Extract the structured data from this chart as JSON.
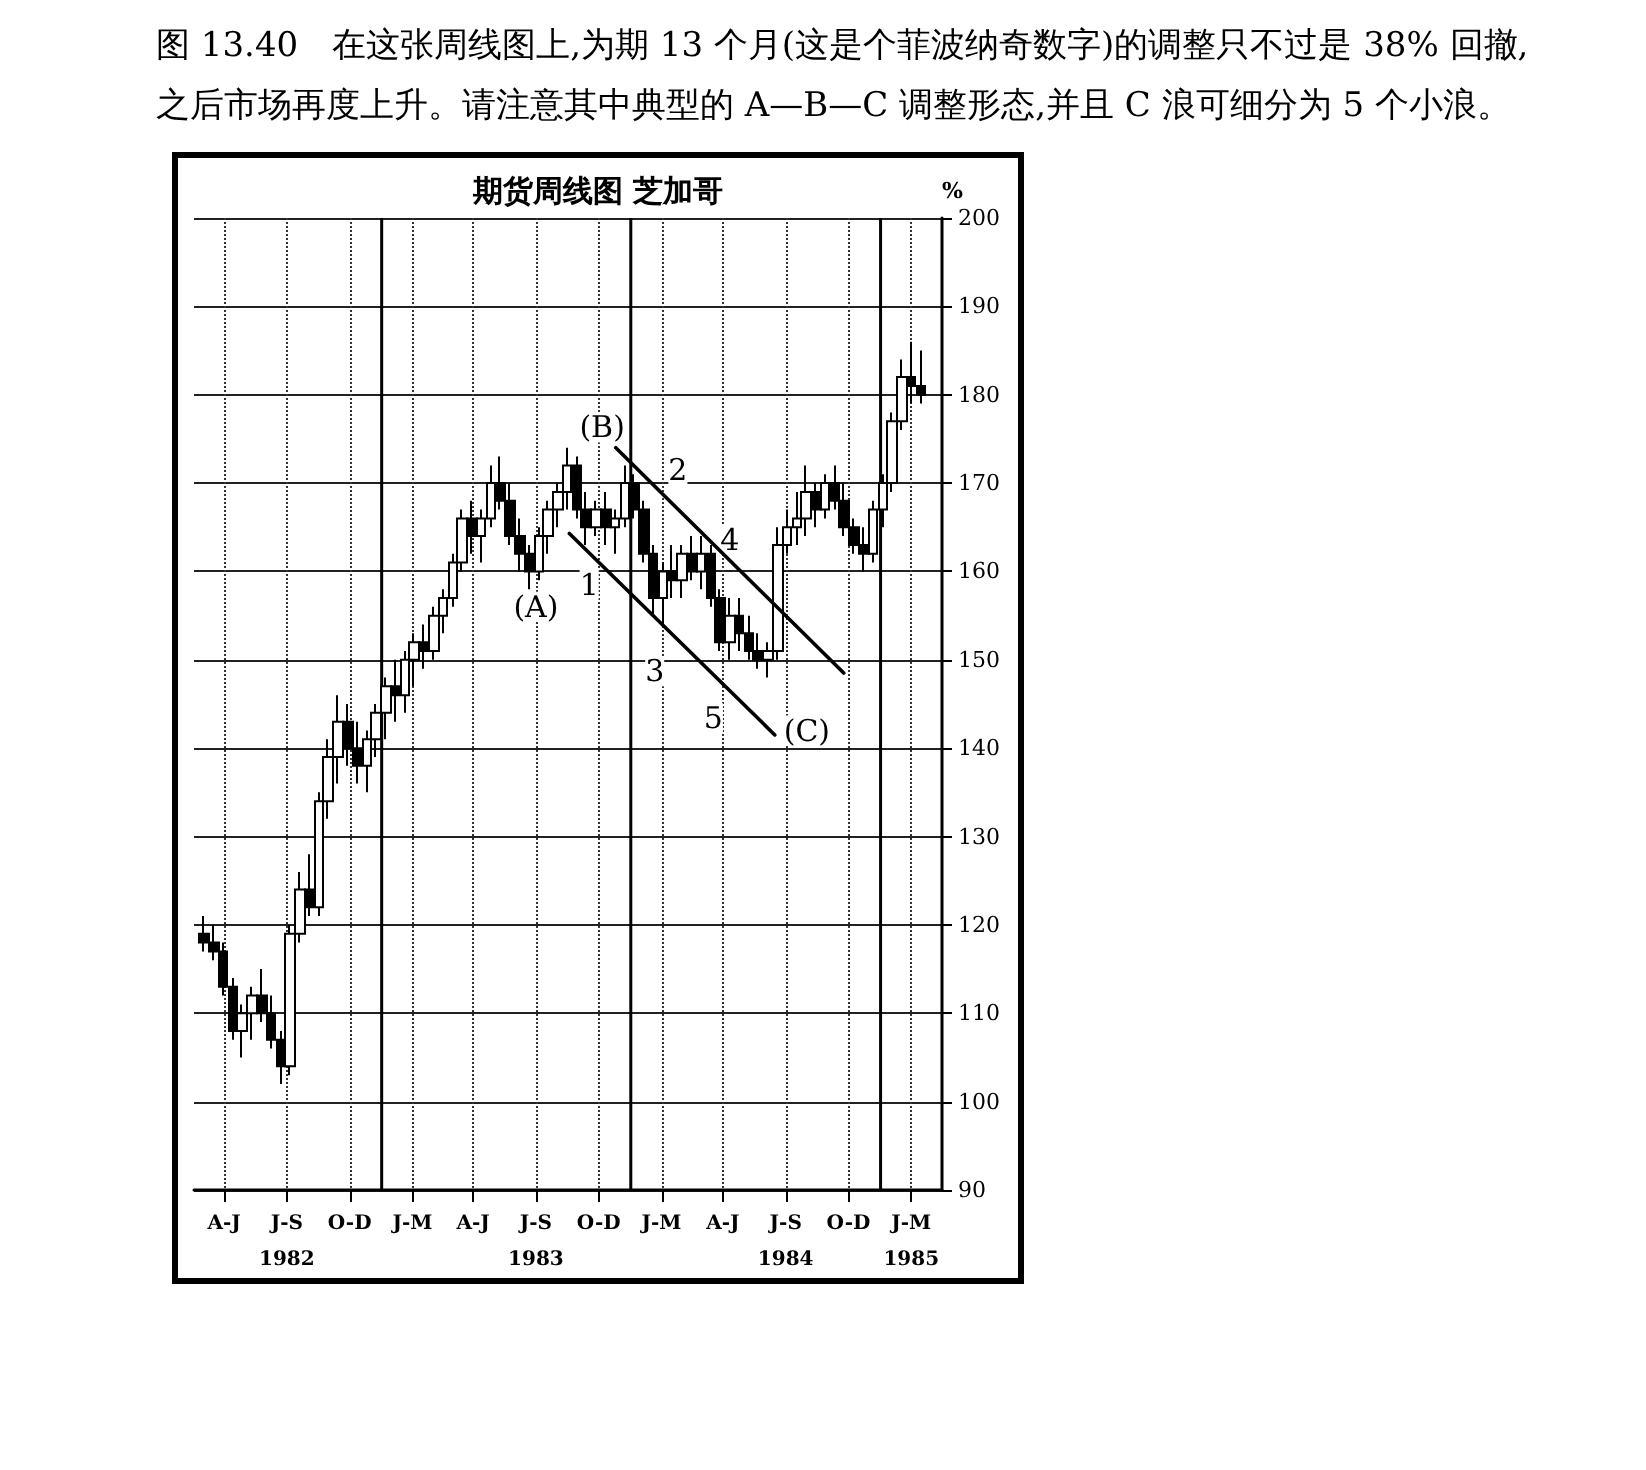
{
  "chart_data": {
    "type": "candlestick",
    "title": "期货周线图 芝加哥",
    "ylabel": "%",
    "x": [
      "1982-04-16",
      "1982-04-30",
      "1982-05-14",
      "1982-05-28",
      "1982-06-11",
      "1982-06-25",
      "1982-07-09",
      "1982-07-23",
      "1982-08-06",
      "1982-08-20",
      "1982-09-03",
      "1982-09-17",
      "1982-10-01",
      "1982-10-15",
      "1982-10-29",
      "1982-11-12",
      "1982-11-26",
      "1982-12-10",
      "1982-12-24",
      "1983-01-07",
      "1983-01-21",
      "1983-02-04",
      "1983-02-18",
      "1983-03-04",
      "1983-03-18",
      "1983-04-01",
      "1983-04-15",
      "1983-04-29",
      "1983-05-13",
      "1983-05-27",
      "1983-06-10",
      "1983-06-24",
      "1983-07-08",
      "1983-07-22",
      "1983-08-05",
      "1983-08-19",
      "1983-09-02",
      "1983-09-16",
      "1983-09-30",
      "1983-10-14",
      "1983-10-28",
      "1983-11-11",
      "1983-11-25",
      "1983-12-09",
      "1983-12-23",
      "1984-01-06",
      "1984-01-20",
      "1984-02-03",
      "1984-02-17",
      "1984-03-02",
      "1984-03-16",
      "1984-03-30",
      "1984-04-13",
      "1984-04-27",
      "1984-05-11",
      "1984-05-25",
      "1984-06-08",
      "1984-06-22",
      "1984-07-06",
      "1984-07-20",
      "1984-08-03",
      "1984-08-17",
      "1984-08-31",
      "1984-09-14",
      "1984-09-28",
      "1984-10-12",
      "1984-10-26",
      "1984-11-09",
      "1984-11-23",
      "1984-12-07",
      "1984-12-21",
      "1985-01-04",
      "1985-01-18",
      "1985-02-01",
      "1985-02-15",
      "1985-03-01"
    ],
    "ohlc": [
      [
        119,
        121,
        117,
        118
      ],
      [
        118,
        120,
        116,
        117
      ],
      [
        117,
        118,
        112,
        113
      ],
      [
        113,
        114,
        107,
        108
      ],
      [
        108,
        111,
        105,
        110
      ],
      [
        110,
        113,
        107,
        112
      ],
      [
        112,
        115,
        109,
        110
      ],
      [
        110,
        112,
        106,
        107
      ],
      [
        107,
        108,
        102,
        104
      ],
      [
        104,
        120,
        103,
        119
      ],
      [
        119,
        126,
        118,
        124
      ],
      [
        124,
        128,
        121,
        122
      ],
      [
        122,
        135,
        121,
        134
      ],
      [
        134,
        141,
        132,
        139
      ],
      [
        139,
        146,
        136,
        143
      ],
      [
        143,
        145,
        138,
        140
      ],
      [
        140,
        143,
        136,
        138
      ],
      [
        138,
        142,
        135,
        141
      ],
      [
        141,
        145,
        139,
        144
      ],
      [
        144,
        148,
        141,
        147
      ],
      [
        147,
        150,
        143,
        146
      ],
      [
        146,
        151,
        144,
        150
      ],
      [
        150,
        153,
        147,
        152
      ],
      [
        152,
        154,
        149,
        151
      ],
      [
        151,
        156,
        150,
        155
      ],
      [
        155,
        158,
        153,
        157
      ],
      [
        157,
        162,
        156,
        161
      ],
      [
        161,
        167,
        160,
        166
      ],
      [
        166,
        168,
        162,
        164
      ],
      [
        164,
        167,
        161,
        166
      ],
      [
        166,
        172,
        165,
        170
      ],
      [
        170,
        173,
        167,
        168
      ],
      [
        168,
        170,
        163,
        164
      ],
      [
        164,
        166,
        160,
        162
      ],
      [
        162,
        163,
        158,
        160
      ],
      [
        160,
        165,
        159,
        164
      ],
      [
        164,
        168,
        162,
        167
      ],
      [
        167,
        170,
        165,
        169
      ],
      [
        169,
        174,
        167,
        172
      ],
      [
        172,
        173,
        166,
        167
      ],
      [
        167,
        169,
        163,
        165
      ],
      [
        165,
        168,
        164,
        167
      ],
      [
        167,
        169,
        163,
        165
      ],
      [
        165,
        167,
        162,
        166
      ],
      [
        166,
        172,
        165,
        170
      ],
      [
        170,
        171,
        166,
        167
      ],
      [
        167,
        168,
        161,
        162
      ],
      [
        162,
        163,
        155,
        157
      ],
      [
        157,
        161,
        154,
        160
      ],
      [
        160,
        163,
        157,
        159
      ],
      [
        159,
        163,
        157,
        162
      ],
      [
        162,
        164,
        159,
        160
      ],
      [
        160,
        164,
        158,
        162
      ],
      [
        162,
        163,
        156,
        157
      ],
      [
        157,
        158,
        151,
        152
      ],
      [
        152,
        157,
        150,
        155
      ],
      [
        155,
        157,
        151,
        153
      ],
      [
        153,
        155,
        150,
        151
      ],
      [
        151,
        153,
        149,
        150
      ],
      [
        150,
        152,
        148,
        151
      ],
      [
        151,
        165,
        150,
        163
      ],
      [
        163,
        167,
        162,
        165
      ],
      [
        165,
        169,
        163,
        166
      ],
      [
        166,
        172,
        164,
        169
      ],
      [
        169,
        170,
        165,
        167
      ],
      [
        167,
        171,
        166,
        170
      ],
      [
        170,
        172,
        167,
        168
      ],
      [
        168,
        170,
        164,
        165
      ],
      [
        165,
        166,
        162,
        163
      ],
      [
        163,
        165,
        160,
        162
      ],
      [
        162,
        168,
        161,
        167
      ],
      [
        167,
        171,
        165,
        170
      ],
      [
        170,
        178,
        169,
        177
      ],
      [
        177,
        184,
        176,
        182
      ],
      [
        182,
        186,
        179,
        181
      ],
      [
        181,
        185,
        179,
        180
      ]
    ],
    "color": "#000000",
    "series": [
      {
        "type": "line",
        "color": "#000000",
        "x": [
          "1983-12-10",
          "1984-11-08"
        ],
        "values": [
          174,
          148.5
        ]
      },
      {
        "type": "line",
        "color": "#000000",
        "x": [
          "1983-10-03",
          "1984-07-30"
        ],
        "values": [
          164.3,
          141.5
        ]
      }
    ],
    "marker": "none",
    "xlim": [
      "1982-04-01",
      "1985-04-01"
    ],
    "xticks": [
      {
        "value": "1982-05-15",
        "label": "A-J"
      },
      {
        "value": "1982-08-15",
        "label": "J-S\n1982"
      },
      {
        "value": "1982-11-15",
        "label": "O-D"
      },
      {
        "value": "1983-02-15",
        "label": "J-M"
      },
      {
        "value": "1983-05-15",
        "label": "A-J"
      },
      {
        "value": "1983-08-15",
        "label": "J-S\n1983"
      },
      {
        "value": "1983-11-15",
        "label": "O-D"
      },
      {
        "value": "1984-02-15",
        "label": "J-M"
      },
      {
        "value": "1984-05-15",
        "label": "A-J"
      },
      {
        "value": "1984-08-15",
        "label": "J-S\n1984"
      },
      {
        "value": "1984-11-15",
        "label": "O-D"
      },
      {
        "value": "1985-02-15",
        "label": "J-M\n1985"
      }
    ],
    "ylim": [
      90,
      200
    ],
    "yticks": [
      90,
      100,
      110,
      120,
      130,
      140,
      150,
      160,
      170,
      180,
      190,
      200
    ],
    "grid": true,
    "ref_lines": [
      {
        "axis": "x",
        "value": "1983-01-01"
      },
      {
        "axis": "x",
        "value": "1984-01-01"
      },
      {
        "axis": "x",
        "value": "1985-01-01"
      }
    ],
    "annotations": [
      "图 13.40　在这张周线图上,为期 13 个月(这是个菲波纳奇数字)的调整只不过是 38% 回撤,之后市场再度上升。请注意其中典型的 A—B—C 调整形态,并且 C 浪可细分为 5 个小浪。",
      {
        "text": "(A)",
        "x": "1983-08-15",
        "y": 156
      },
      {
        "text": "(B)",
        "x": "1983-11-20",
        "y": 176.3
      },
      {
        "text": "(C)",
        "x": "1984-09-15",
        "y": 142
      },
      {
        "text": "1",
        "x": "1983-11-01",
        "y": 158.5
      },
      {
        "text": "2",
        "x": "1984-03-10",
        "y": 171.5
      },
      {
        "text": "3",
        "x": "1984-02-05",
        "y": 148.7
      },
      {
        "text": "4",
        "x": "1984-05-25",
        "y": 163.6
      },
      {
        "text": "5",
        "x": "1984-05-01",
        "y": 143.4
      }
    ]
  }
}
